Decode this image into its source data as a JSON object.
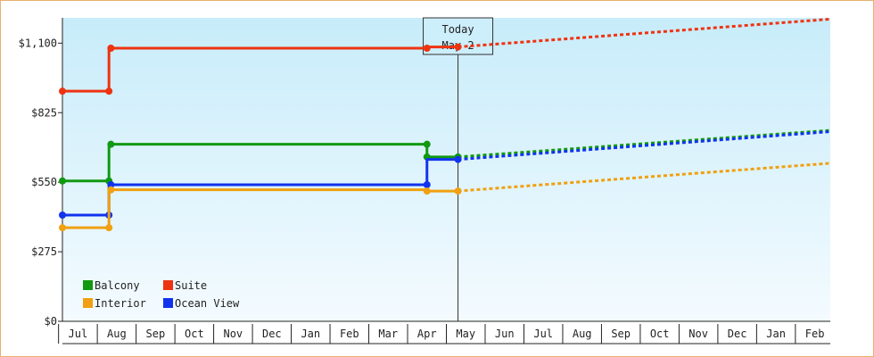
{
  "chart_data": {
    "type": "line",
    "y_ticks": [
      {
        "value": 0,
        "label": "$0"
      },
      {
        "value": 275,
        "label": "$275"
      },
      {
        "value": 550,
        "label": "$550"
      },
      {
        "value": 825,
        "label": "$825"
      },
      {
        "value": 1100,
        "label": "$1,100"
      }
    ],
    "ylim": [
      0,
      1200
    ],
    "x_ticks": [
      "Jul",
      "Aug",
      "Sep",
      "Oct",
      "Nov",
      "Dec",
      "Jan",
      "Feb",
      "Mar",
      "Apr",
      "May",
      "Jun",
      "Jul",
      "Aug",
      "Sep",
      "Oct",
      "Nov",
      "Dec",
      "Jan",
      "Feb"
    ],
    "xlim": [
      -0.4,
      19.4
    ],
    "today": {
      "line1": "Today",
      "line2": "May 2",
      "x": 9.8
    },
    "series": [
      {
        "name": "Suite",
        "color": "#ee3311",
        "points": [
          [
            -0.4,
            910
          ],
          [
            0.8,
            910
          ],
          [
            0.8,
            1080
          ],
          [
            9.0,
            1080
          ],
          [
            9.0,
            1085
          ],
          [
            9.8,
            1085
          ]
        ],
        "markers": [
          [
            -0.4,
            910
          ],
          [
            0.8,
            910
          ],
          [
            0.85,
            1080
          ],
          [
            9.0,
            1080
          ],
          [
            9.8,
            1085
          ]
        ],
        "forecast": [
          [
            9.8,
            1085
          ],
          [
            19.4,
            1195
          ]
        ]
      },
      {
        "name": "Balcony",
        "color": "#119911",
        "points": [
          [
            -0.4,
            555
          ],
          [
            0.8,
            555
          ],
          [
            0.8,
            700
          ],
          [
            9.0,
            700
          ],
          [
            9.0,
            650
          ],
          [
            9.8,
            650
          ]
        ],
        "markers": [
          [
            -0.4,
            555
          ],
          [
            0.8,
            555
          ],
          [
            0.85,
            700
          ],
          [
            9.0,
            700
          ],
          [
            9.0,
            650
          ],
          [
            9.8,
            650
          ]
        ],
        "forecast": [
          [
            9.8,
            650
          ],
          [
            19.4,
            755
          ]
        ]
      },
      {
        "name": "Ocean View",
        "color": "#1133ee",
        "points": [
          [
            -0.4,
            420
          ],
          [
            0.8,
            420
          ],
          [
            0.8,
            540
          ],
          [
            9.0,
            540
          ],
          [
            9.0,
            640
          ],
          [
            9.8,
            640
          ]
        ],
        "markers": [
          [
            -0.4,
            420
          ],
          [
            0.8,
            420
          ],
          [
            0.85,
            540
          ],
          [
            9.0,
            540
          ],
          [
            9.8,
            640
          ]
        ],
        "forecast": [
          [
            9.8,
            640
          ],
          [
            19.4,
            750
          ]
        ]
      },
      {
        "name": "Interior",
        "color": "#f0a010",
        "points": [
          [
            -0.4,
            370
          ],
          [
            0.8,
            370
          ],
          [
            0.8,
            520
          ],
          [
            9.0,
            520
          ],
          [
            9.0,
            515
          ],
          [
            9.8,
            515
          ]
        ],
        "markers": [
          [
            -0.4,
            370
          ],
          [
            0.8,
            370
          ],
          [
            0.85,
            520
          ],
          [
            9.0,
            515
          ],
          [
            9.8,
            515
          ]
        ],
        "forecast": [
          [
            9.8,
            515
          ],
          [
            19.4,
            625
          ]
        ]
      }
    ],
    "legend": {
      "placement": "bottom-left",
      "entries": [
        {
          "label": "Balcony",
          "color": "#119911"
        },
        {
          "label": "Suite",
          "color": "#ee3311"
        },
        {
          "label": "Interior",
          "color": "#f0a010"
        },
        {
          "label": "Ocean View",
          "color": "#1133ee"
        }
      ]
    },
    "grid": false,
    "background": {
      "top": "#c8ecfa",
      "bottom": "#f4fbff"
    }
  }
}
